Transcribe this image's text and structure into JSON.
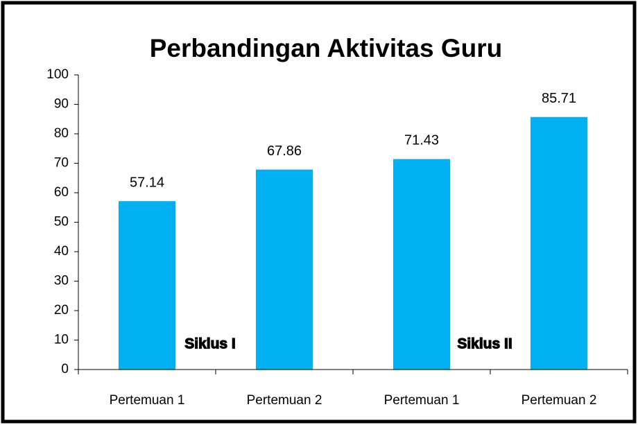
{
  "chart_data": {
    "type": "bar",
    "title": "Perbandingan Aktivitas Guru",
    "categories": [
      "Pertemuan 1",
      "Pertemuan 2",
      "Pertemuan 1",
      "Pertemuan 2"
    ],
    "values": [
      57.14,
      67.86,
      71.43,
      85.71
    ],
    "color": "#00b0f0",
    "ylim": [
      0,
      100
    ],
    "yticks": [
      0,
      10,
      20,
      30,
      40,
      50,
      60,
      70,
      80,
      90,
      100
    ],
    "grid": false,
    "annotations": [
      "Siklus I",
      "Siklus II"
    ]
  }
}
